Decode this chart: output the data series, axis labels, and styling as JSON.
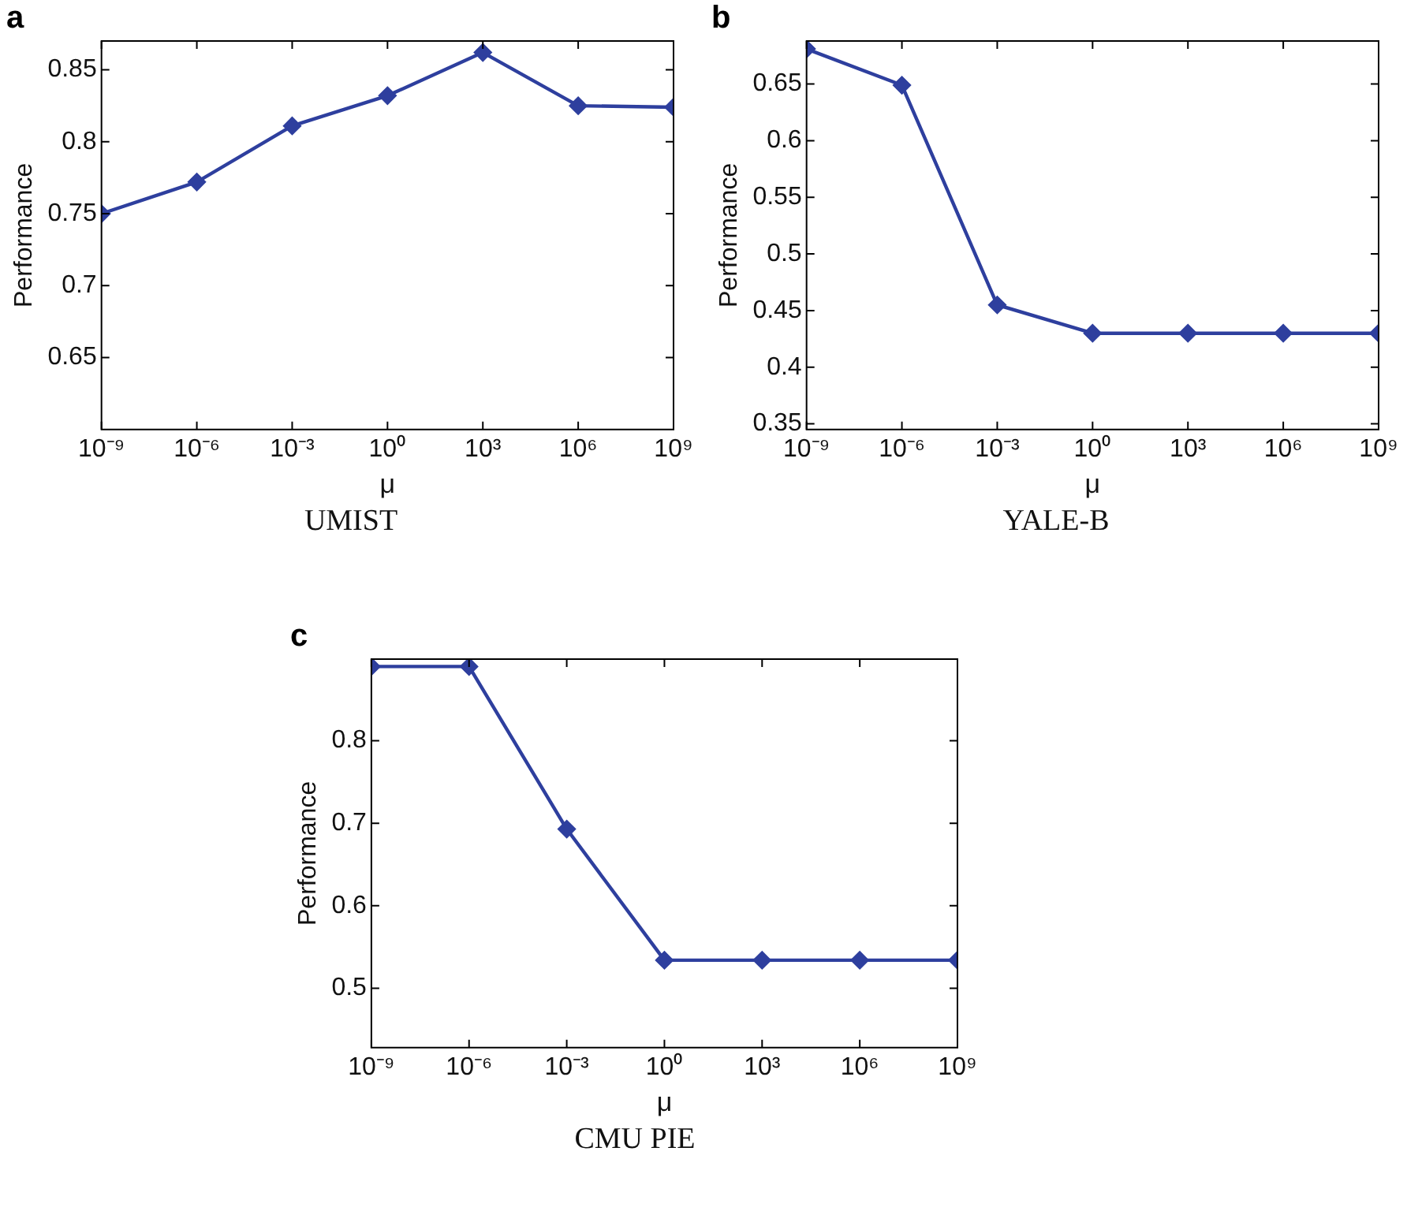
{
  "chart_data": [
    {
      "type": "line",
      "title": "a",
      "xlabel": "μ",
      "ylabel": "Performance",
      "annotations": [
        "UMIST"
      ],
      "log": "x",
      "marker": "diamond",
      "x": [
        1e-09,
        1e-06,
        0.001,
        1,
        1000.0,
        1000000.0,
        1000000000.0
      ],
      "series": [
        {
          "color": "#2e3f9e",
          "values": [
            0.75,
            0.772,
            0.811,
            0.832,
            0.862,
            0.825,
            0.824
          ]
        }
      ],
      "xlim": [
        1e-09,
        1000000000.0
      ],
      "xticks": [
        {
          "value": 1e-09,
          "label": "10⁻⁹"
        },
        {
          "value": 1e-06,
          "label": "10⁻⁶"
        },
        {
          "value": 0.001,
          "label": "10⁻³"
        },
        {
          "value": 1,
          "label": "10⁰"
        },
        {
          "value": 1000.0,
          "label": "10³"
        },
        {
          "value": 1000000.0,
          "label": "10⁶"
        },
        {
          "value": 1000000000.0,
          "label": "10⁹"
        }
      ],
      "ylim": [
        0.6,
        0.87
      ],
      "yticks": [
        0.65,
        0.7,
        0.75,
        0.8,
        0.85
      ]
    },
    {
      "type": "line",
      "title": "b",
      "xlabel": "μ",
      "ylabel": "Performance",
      "annotations": [
        "YALE-B"
      ],
      "log": "x",
      "marker": "diamond",
      "x": [
        1e-09,
        1e-06,
        0.001,
        1,
        1000.0,
        1000000.0,
        1000000000.0
      ],
      "series": [
        {
          "color": "#2e3f9e",
          "values": [
            0.681,
            0.649,
            0.455,
            0.43,
            0.43,
            0.43,
            0.43
          ]
        }
      ],
      "xlim": [
        1e-09,
        1000000000.0
      ],
      "xticks": [
        {
          "value": 1e-09,
          "label": "10⁻⁹"
        },
        {
          "value": 1e-06,
          "label": "10⁻⁶"
        },
        {
          "value": 0.001,
          "label": "10⁻³"
        },
        {
          "value": 1,
          "label": "10⁰"
        },
        {
          "value": 1000.0,
          "label": "10³"
        },
        {
          "value": 1000000.0,
          "label": "10⁶"
        },
        {
          "value": 1000000000.0,
          "label": "10⁹"
        }
      ],
      "ylim": [
        0.345,
        0.688
      ],
      "yticks": [
        0.35,
        0.4,
        0.45,
        0.5,
        0.55,
        0.6,
        0.65
      ]
    },
    {
      "type": "line",
      "title": "c",
      "xlabel": "μ",
      "ylabel": "Performance",
      "annotations": [
        "CMU PIE"
      ],
      "log": "x",
      "marker": "diamond",
      "x": [
        1e-09,
        1e-06,
        0.001,
        1,
        1000.0,
        1000000.0,
        1000000000.0
      ],
      "series": [
        {
          "color": "#2e3f9e",
          "values": [
            0.89,
            0.89,
            0.693,
            0.534,
            0.534,
            0.534,
            0.534
          ]
        }
      ],
      "xlim": [
        1e-09,
        1000000000.0
      ],
      "xticks": [
        {
          "value": 1e-09,
          "label": "10⁻⁹"
        },
        {
          "value": 1e-06,
          "label": "10⁻⁶"
        },
        {
          "value": 0.001,
          "label": "10⁻³"
        },
        {
          "value": 1,
          "label": "10⁰"
        },
        {
          "value": 1000.0,
          "label": "10³"
        },
        {
          "value": 1000000.0,
          "label": "10⁶"
        },
        {
          "value": 1000000000.0,
          "label": "10⁹"
        }
      ],
      "ylim": [
        0.428,
        0.899
      ],
      "yticks": [
        0.5,
        0.6,
        0.7,
        0.8
      ]
    }
  ]
}
